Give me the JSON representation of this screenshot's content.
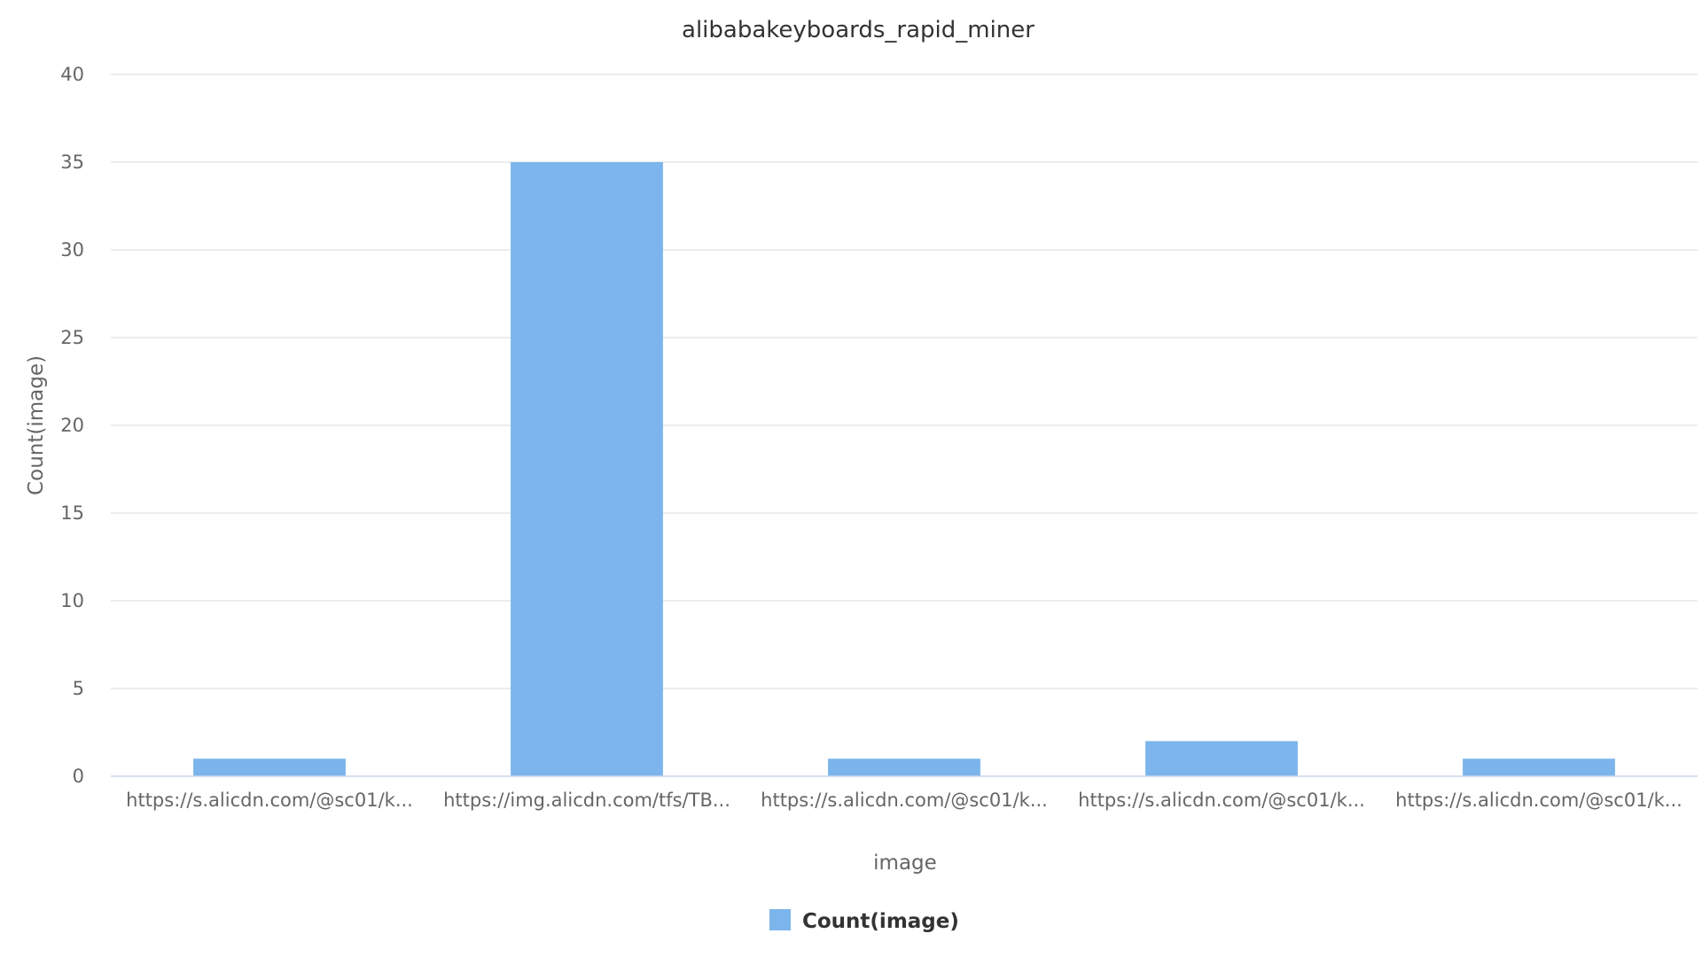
{
  "chart_data": {
    "type": "bar",
    "title": "alibabakeyboards_rapid_miner",
    "xlabel": "image",
    "ylabel": "Count(image)",
    "categories": [
      "https://s.alicdn.com/@sc01/k...",
      "https://img.alicdn.com/tfs/TB...",
      "https://s.alicdn.com/@sc01/k...",
      "https://s.alicdn.com/@sc01/k...",
      "https://s.alicdn.com/@sc01/k..."
    ],
    "series": [
      {
        "name": "Count(image)",
        "values": [
          1,
          35,
          1,
          2,
          1
        ]
      }
    ],
    "ylim": [
      0,
      40
    ],
    "yticks": [
      0,
      5,
      10,
      15,
      20,
      25,
      30,
      35,
      40
    ],
    "grid": true,
    "legend": "bottom-center",
    "colors": {
      "bar": "#7cb5ec"
    }
  }
}
